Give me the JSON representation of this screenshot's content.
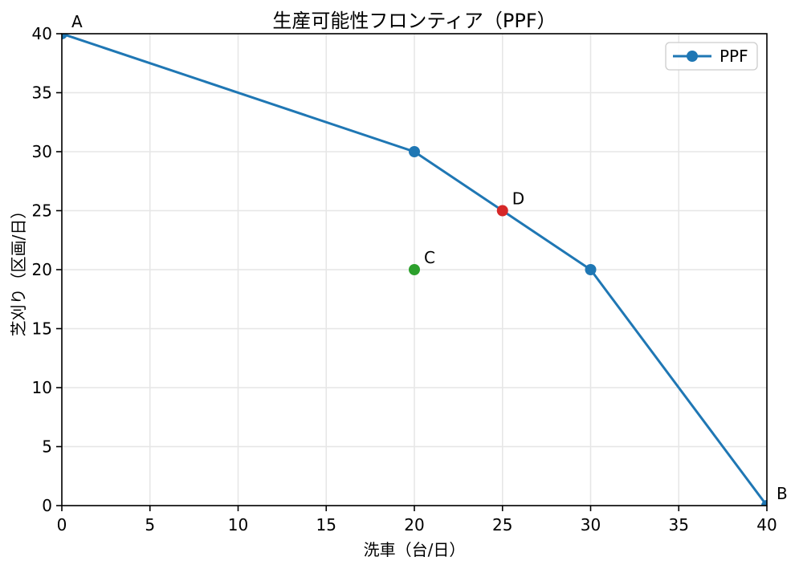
{
  "chart_data": {
    "type": "line",
    "title": "生産可能性フロンティア（PPF）",
    "xlabel": "洗車（台/日）",
    "ylabel": "芝刈り（区画/日）",
    "xlim": [
      0,
      40
    ],
    "ylim": [
      0,
      40
    ],
    "xticks": [
      0,
      5,
      10,
      15,
      20,
      25,
      30,
      35,
      40
    ],
    "yticks": [
      0,
      5,
      10,
      15,
      20,
      25,
      30,
      35,
      40
    ],
    "grid": true,
    "grid_color": "#e6e6e6",
    "axis_color": "#000000",
    "legend": {
      "position": "upper right",
      "entries": [
        {
          "label": "PPF",
          "color": "#1f77b4",
          "marker": "circle"
        }
      ]
    },
    "series": [
      {
        "name": "PPF",
        "color": "#1f77b4",
        "marker": "circle",
        "x": [
          0,
          20,
          30,
          40
        ],
        "y": [
          40,
          30,
          20,
          0
        ]
      }
    ],
    "scatter_points": [
      {
        "label": "C",
        "x": 20,
        "y": 20,
        "color": "#2ca02c"
      },
      {
        "label": "D",
        "x": 25,
        "y": 25,
        "color": "#d62728"
      }
    ],
    "annotations": [
      {
        "text": "A",
        "x": 0,
        "y": 40
      },
      {
        "text": "B",
        "x": 40,
        "y": 0
      },
      {
        "text": "C",
        "x": 20,
        "y": 20
      },
      {
        "text": "D",
        "x": 25,
        "y": 25
      }
    ]
  }
}
